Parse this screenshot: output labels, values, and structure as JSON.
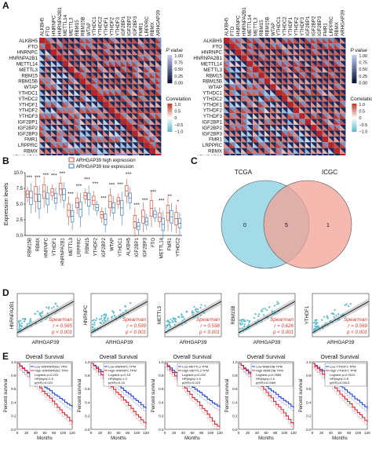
{
  "panel_labels": {
    "a": "A",
    "b": "B",
    "c": "C",
    "d": "D",
    "e": "E"
  },
  "colors": {
    "pos": "#c0392b",
    "neg": "#2a6fb5",
    "high": "#e24a33",
    "low": "#3a7fc4",
    "venn_left": "#9ad7e6",
    "venn_right": "#f3a194",
    "scatter": "#5bbccd",
    "km_low": "#1f3fd6",
    "km_high": "#e0202a",
    "accent": "#d93a2b"
  },
  "heatmap": {
    "genes": [
      "ALKBH5",
      "FTO",
      "HNRNPC",
      "HNRNPA2B1",
      "METTL14",
      "METTL3",
      "RBM15",
      "RBM15B",
      "WTAP",
      "YTHDC1",
      "YTHDC2",
      "YTHDF1",
      "YTHDF2",
      "YTHDF3",
      "IGF2BP1",
      "IGF2BP2",
      "IGF2BP3",
      "FMR1",
      "LRPPRC",
      "RBMX",
      "ARHGAP39"
    ],
    "legend": {
      "pvalue_title": "P value",
      "pvalue_ticks": [
        "1.00",
        "0.75",
        "0.50",
        "0.25",
        "0.00"
      ],
      "corr_title": "Correlation",
      "corr_ticks": [
        "1.0",
        "0.5",
        "0",
        "−0.5",
        "−1.0"
      ]
    }
  },
  "panel_b": {
    "legend": [
      "ARHGAP39 high expression",
      "ARHGAP39 low expression"
    ],
    "ylabel": "Expression levels",
    "yticks": [
      "10.0",
      "7.5",
      "5.0",
      "2.5",
      "0.0"
    ],
    "genes": [
      "RBM15B",
      "RBMX",
      "HNRNPC",
      "YTHDF1",
      "HNRNPA2B1",
      "METTL3",
      "LRPPRC",
      "RBM15",
      "YTHDF2",
      "IGF2BP2",
      "WTAP",
      "YTHDC1",
      "ALKBH5",
      "IGF2BP1",
      "IGF2BP3",
      "FTO",
      "METTL14",
      "FMR1",
      "YTHDC2"
    ],
    "sig": [
      "***",
      "***",
      "***",
      "***",
      "***",
      "***",
      "***",
      "***",
      "***",
      "***",
      "***",
      "***",
      "***",
      "***",
      "***",
      "***",
      "***",
      "**",
      "*"
    ]
  },
  "panel_c": {
    "left_label": "TCGA",
    "right_label": "ICGC",
    "left_only": "0",
    "both": "5",
    "right_only": "1"
  },
  "panel_d": {
    "xlabel": "ARHGAP39",
    "method": "Spearman",
    "plots": [
      {
        "gene": "HNRNPA2B1",
        "r": "r = 0.565",
        "p": "p < 0.001"
      },
      {
        "gene": "HNRNPC",
        "r": "r = 0.599",
        "p": "p < 0.001"
      },
      {
        "gene": "METTL3",
        "r": "r = 0.598",
        "p": "p < 0.001"
      },
      {
        "gene": "RBM15B",
        "r": "r = 0.626",
        "p": "p < 0.001"
      },
      {
        "gene": "YTHDF1",
        "r": "r = 0.569",
        "p": "p < 0.001"
      }
    ]
  },
  "panel_e": {
    "title": "Overall Survival",
    "ylabel": "Percent survival",
    "xlabel": "Months",
    "xticks": [
      "0",
      "20",
      "40",
      "60",
      "80",
      "100",
      "120"
    ],
    "yticks": [
      "1.0",
      "0.8",
      "0.6",
      "0.4",
      "0.2",
      "0.0"
    ],
    "plots": [
      {
        "low": "Low HNRNPA2B1 TPM",
        "high": "High HNRNPA2B1 TPM",
        "logrank": "Logrank p=0.022",
        "hr": "HR(high)=1.5",
        "phr": "p(HR)=0.023"
      },
      {
        "low": "Low HNRNPC TPM",
        "high": "High HNRNPC TPM",
        "logrank": "Logrank p=0.15",
        "hr": "HR(high)=1.3",
        "phr": "p(HR)=0.15"
      },
      {
        "low": "Low METTL3 TPM",
        "high": "High METTL3 TPM",
        "logrank": "Logrank p=0.022",
        "hr": "HR(high)=1.5",
        "phr": "p(HR)=0.023"
      },
      {
        "low": "Low RBM15B TPM",
        "high": "High RBM15B TPM",
        "logrank": "Logrank p=0.0065",
        "hr": "HR(high)=1.6",
        "phr": "p(HR)=0.0069"
      },
      {
        "low": "Low YTHDF1 TPM",
        "high": "High YTHDF1 TPM",
        "logrank": "Logrank p=0.0012",
        "hr": "HR(high)=1.8",
        "phr": "p(HR)=0.0013"
      }
    ]
  }
}
